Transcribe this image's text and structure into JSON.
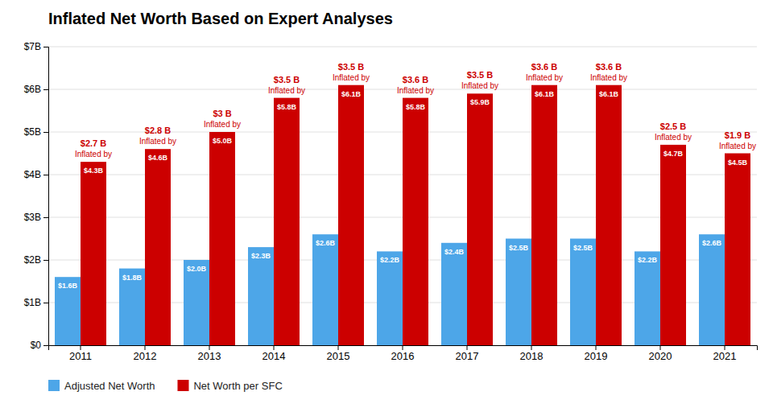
{
  "chart_data": {
    "type": "bar",
    "title": "Inflated Net Worth Based on Expert Analyses",
    "categories": [
      "2011",
      "2012",
      "2013",
      "2014",
      "2015",
      "2016",
      "2017",
      "2018",
      "2019",
      "2020",
      "2021"
    ],
    "series": [
      {
        "name": "Adjusted Net Worth",
        "color": "#4da6e8",
        "values": [
          1.6,
          1.8,
          2.0,
          2.3,
          2.6,
          2.2,
          2.4,
          2.5,
          2.5,
          2.2,
          2.6
        ],
        "value_labels": [
          "$1.6B",
          "$1.8B",
          "$2.0B",
          "$2.3B",
          "$2.6B",
          "$2.2B",
          "$2.4B",
          "$2.5B",
          "$2.5B",
          "$2.2B",
          "$2.6B"
        ]
      },
      {
        "name": "Net Worth per SFC",
        "color": "#cc0000",
        "values": [
          4.3,
          4.6,
          5.0,
          5.8,
          6.1,
          5.8,
          5.9,
          6.1,
          6.1,
          4.7,
          4.5
        ],
        "value_labels": [
          "$4.3B",
          "$4.6B",
          "$5.0B",
          "$5.8B",
          "$6.1B",
          "$5.8B",
          "$5.9B",
          "$6.1B",
          "$6.1B",
          "$4.7B",
          "$4.5B"
        ]
      }
    ],
    "annotations": {
      "text": "Inflated by",
      "values": [
        2.7,
        2.8,
        3.0,
        3.5,
        3.5,
        3.6,
        3.5,
        3.6,
        3.6,
        2.5,
        1.9
      ],
      "value_labels": [
        "$2.7 B",
        "$2.8 B",
        "$3 B",
        "$3.5 B",
        "$3.5 B",
        "$3.6 B",
        "$3.5 B",
        "$3.6 B",
        "$3.6 B",
        "$2.5 B",
        "$1.9 B"
      ]
    },
    "ylim": [
      0,
      7
    ],
    "yticks": [
      {
        "value": 0,
        "label": "$0"
      },
      {
        "value": 1,
        "label": "$1B"
      },
      {
        "value": 2,
        "label": "$2B"
      },
      {
        "value": 3,
        "label": "$3B"
      },
      {
        "value": 4,
        "label": "$4B"
      },
      {
        "value": 5,
        "label": "$5B"
      },
      {
        "value": 6,
        "label": "$6B"
      },
      {
        "value": 7,
        "label": "$7B"
      }
    ],
    "grid": true,
    "legend": "bottom",
    "data_labels": true
  }
}
